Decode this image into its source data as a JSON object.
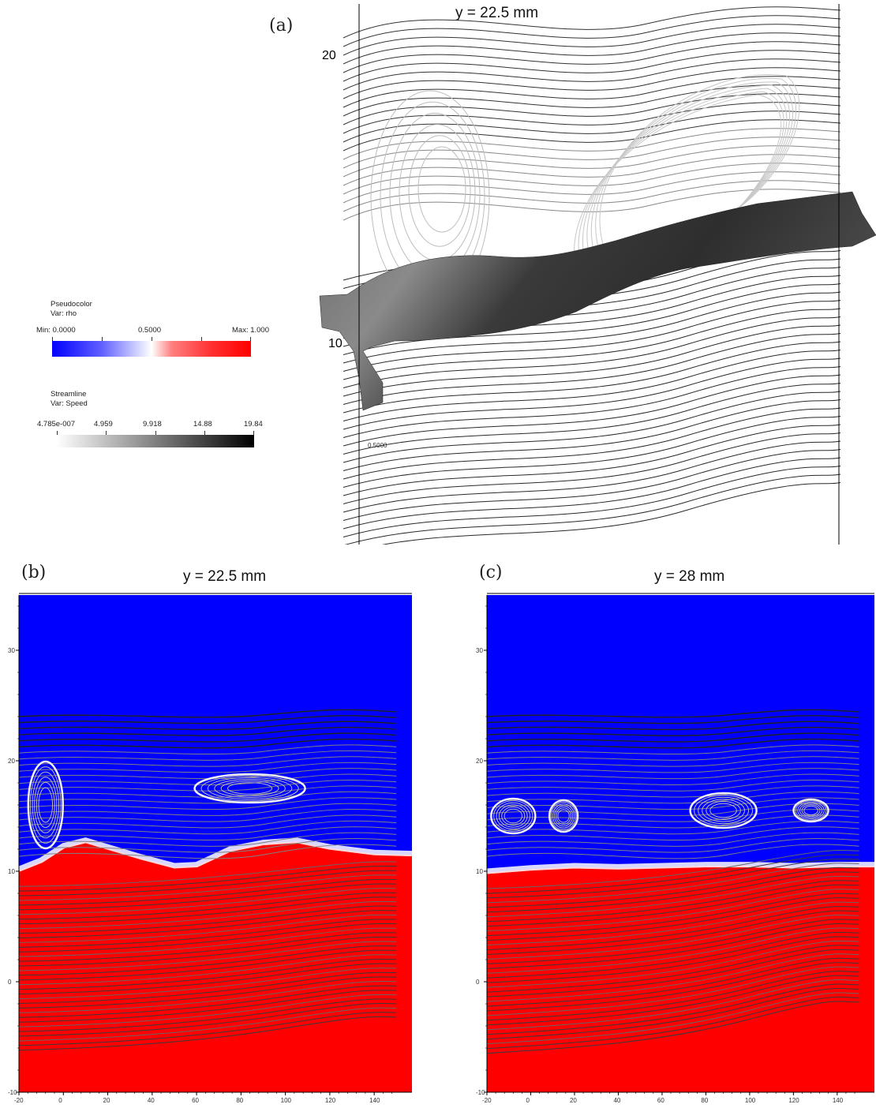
{
  "panels": {
    "a": {
      "letter": "(a)",
      "title": "y = 22.5 mm",
      "axis_label_top": "20",
      "axis_label_mid": "10",
      "contour_label": "0.5000"
    },
    "b": {
      "letter": "(b)",
      "title": "y = 22.5 mm",
      "y_ticks": [
        "30",
        "20",
        "10",
        "0",
        "-10"
      ],
      "x_ticks": [
        "-20",
        "0",
        "20",
        "40",
        "60",
        "80",
        "100",
        "120",
        "140"
      ],
      "corner_label": "-20"
    },
    "c": {
      "letter": "(c)",
      "title": "y = 28 mm",
      "y_ticks": [
        "30",
        "20",
        "10",
        "0",
        "-10"
      ],
      "x_ticks": [
        "-20",
        "0",
        "20",
        "40",
        "60",
        "80",
        "100",
        "120",
        "140"
      ],
      "corner_label": "-20"
    }
  },
  "legend_pseudocolor": {
    "heading": "Pseudocolor",
    "var": "Var: rho",
    "min": "Min: 0.0000",
    "mid": "0.5000",
    "max": "Max: 1.000",
    "colors": {
      "low": "#0000ff",
      "mid": "#ffffff",
      "high": "#ff0000"
    }
  },
  "legend_streamline": {
    "heading": "Streamline",
    "var": "Var: Speed",
    "ticks": [
      "4.785e-007",
      "4.959",
      "9.918",
      "14.88",
      "19.84"
    ],
    "colors": {
      "low": "#ffffff",
      "high": "#000000"
    }
  },
  "colors": {
    "fluid_light": "#0a00ff",
    "fluid_heavy": "#ff0000",
    "interface": "#ffffff",
    "surface": "#555555"
  }
}
